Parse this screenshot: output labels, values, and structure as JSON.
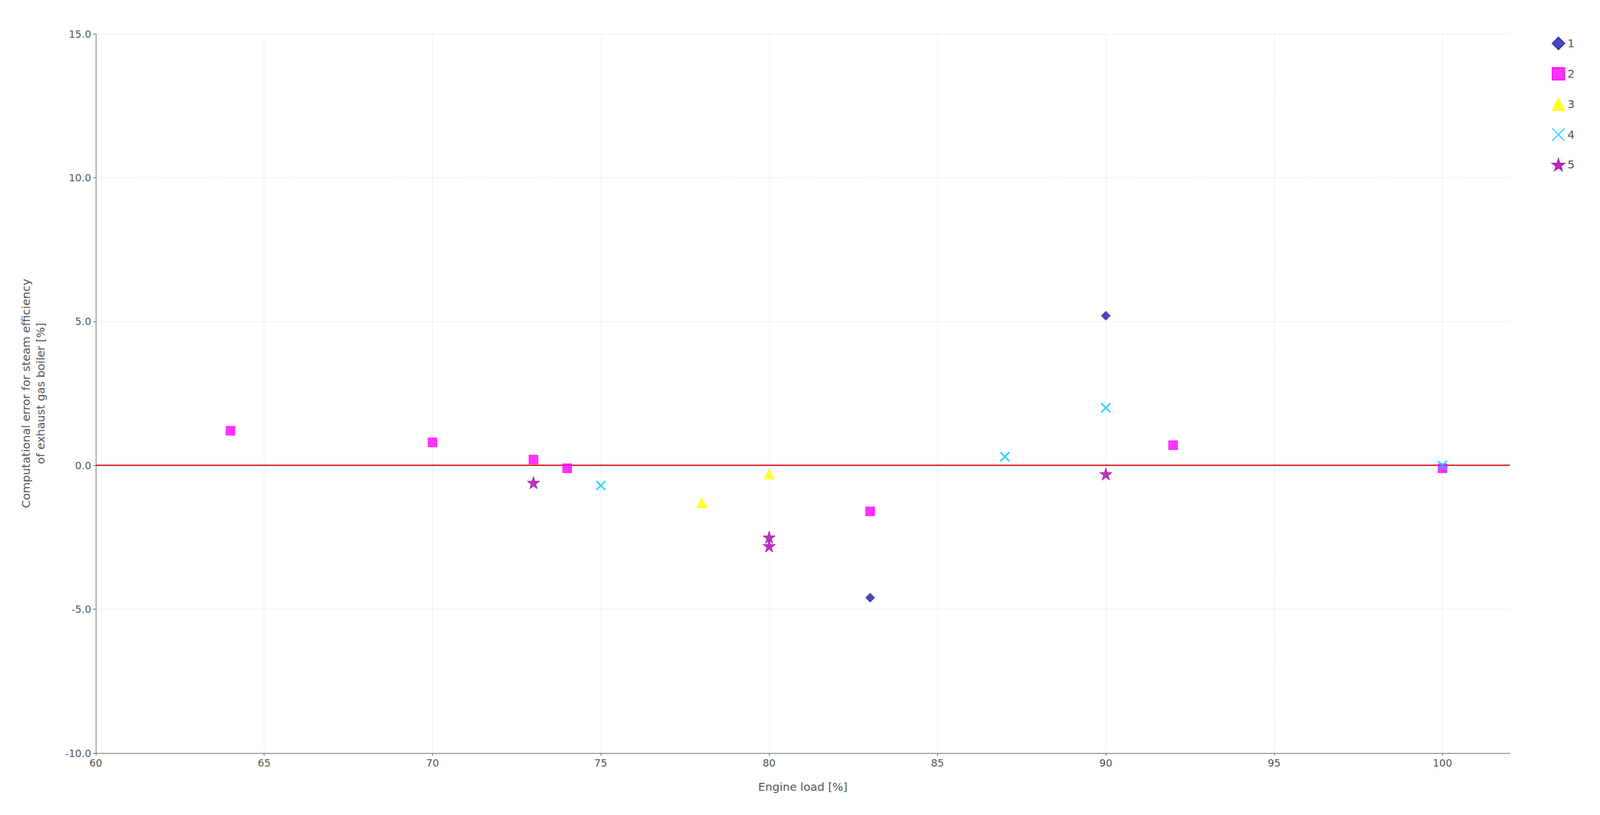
{
  "chart_data": {
    "type": "scatter",
    "xlabel": "Engine load [%]",
    "ylabel": "Computational error for steam efficiency\nof exhaust gas boiler [%]",
    "xlim": [
      60,
      102
    ],
    "ylim": [
      -10.0,
      15.0
    ],
    "xticks": [
      60,
      65,
      70,
      75,
      80,
      85,
      90,
      95,
      100
    ],
    "yticks": [
      {
        "value": -10.0,
        "label": "-10.0"
      },
      {
        "value": -5.0,
        "label": "-5.0"
      },
      {
        "value": 0.0,
        "label": "0.0"
      },
      {
        "value": 5.0,
        "label": "5.0"
      },
      {
        "value": 10.0,
        "label": "10.0"
      },
      {
        "value": 15.0,
        "label": "15.0"
      }
    ],
    "grid": true,
    "legend": "right",
    "series": [
      {
        "name": "1",
        "color": "#1a1aaa",
        "marker": "diamond",
        "x": [
          90,
          83
        ],
        "values": [
          5.2,
          -4.6
        ]
      },
      {
        "name": "2",
        "color": "#ff00ff",
        "marker": "square",
        "x": [
          64,
          70,
          73,
          74,
          83,
          92,
          100
        ],
        "values": [
          1.2,
          0.8,
          0.2,
          -0.1,
          -1.6,
          0.7,
          -0.1
        ]
      },
      {
        "name": "3",
        "color": "#ffff00",
        "marker": "triangle",
        "x": [
          78,
          80
        ],
        "values": [
          -1.3,
          -0.3
        ]
      },
      {
        "name": "4",
        "color": "#00ccff",
        "marker": "x",
        "x": [
          75,
          87,
          90,
          100
        ],
        "values": [
          -0.7,
          0.3,
          2.0,
          0.0
        ]
      },
      {
        "name": "5",
        "color": "#aa00aa",
        "marker": "star",
        "x": [
          73,
          80,
          80,
          90
        ],
        "values": [
          -0.6,
          -2.5,
          -2.8,
          -0.3
        ]
      }
    ],
    "reference_line": {
      "y": 0,
      "color": "#cc0000",
      "line_style": "solid"
    }
  }
}
